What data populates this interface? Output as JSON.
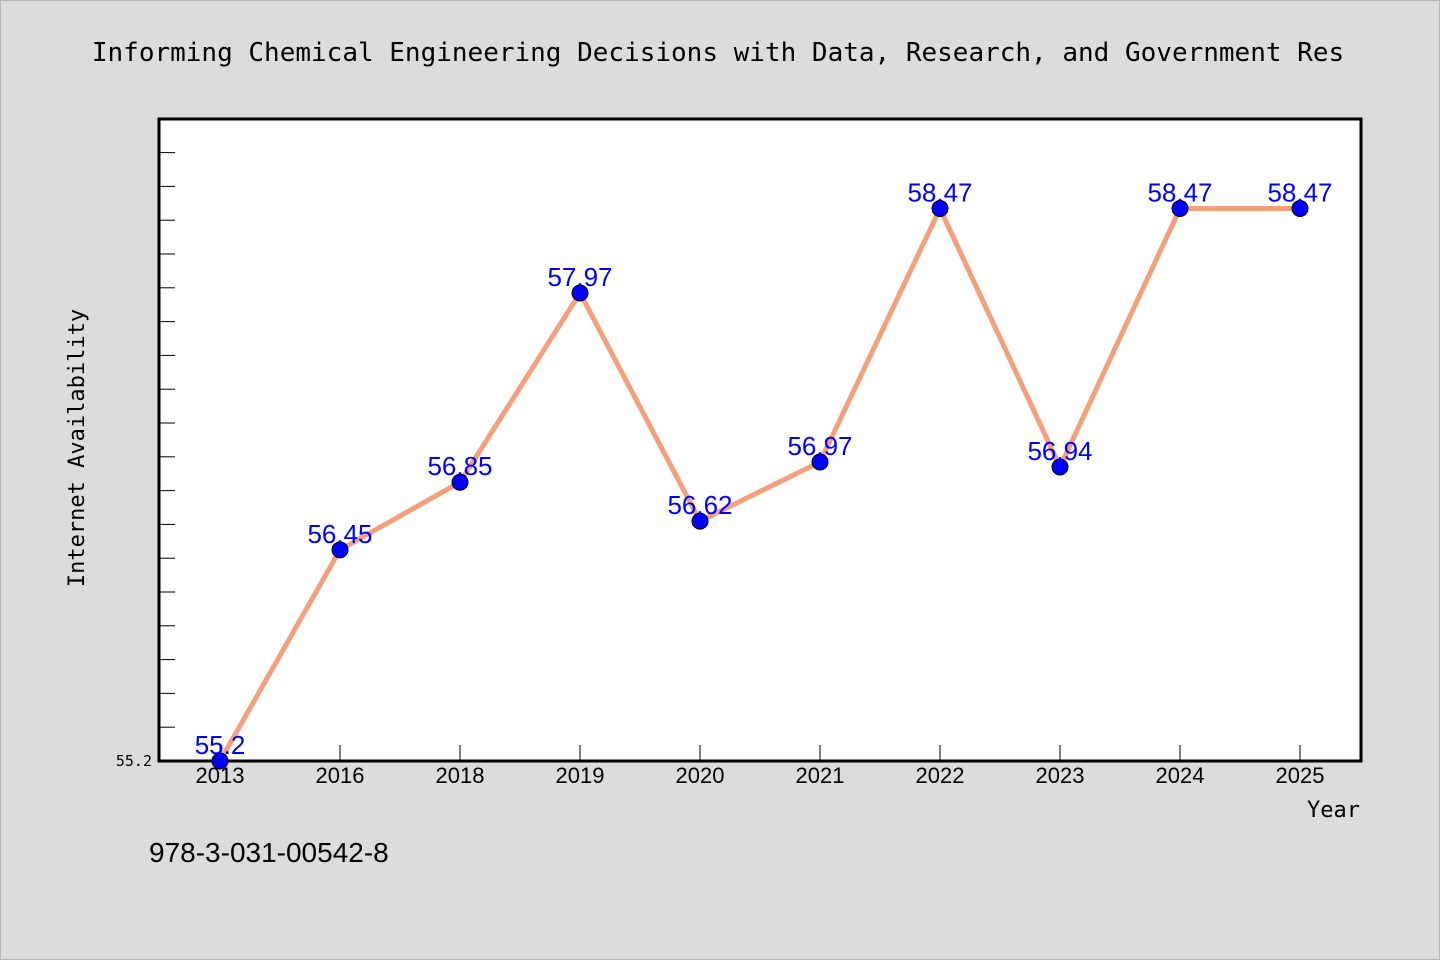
{
  "chart_data": {
    "type": "line",
    "title": "Informing Chemical Engineering Decisions with Data, Research, and Government Res",
    "xlabel": "Year",
    "ylabel": "Internet Availability",
    "categories": [
      "2013",
      "2016",
      "2018",
      "2019",
      "2020",
      "2021",
      "2022",
      "2023",
      "2024",
      "2025"
    ],
    "series": [
      {
        "values": [
          55.2,
          56.45,
          56.85,
          57.97,
          56.62,
          56.97,
          58.47,
          56.94,
          58.47,
          58.47
        ],
        "labels": [
          "55.2",
          "56.45",
          "56.85",
          "57.97",
          "56.62",
          "56.97",
          "58.47",
          "56.94",
          "58.47",
          "58.47"
        ]
      }
    ],
    "ytick_labels": [
      "55.2"
    ],
    "ylim": [
      55.2,
      59.0
    ],
    "grid": false,
    "colors": {
      "line": "#f4a07c",
      "marker": "#0000ff",
      "data_label": "#0000ff",
      "plot_background": "#ffffff",
      "figure_background": "#dcdcdc"
    }
  },
  "footer": {
    "isbn": "978-3-031-00542-8"
  }
}
